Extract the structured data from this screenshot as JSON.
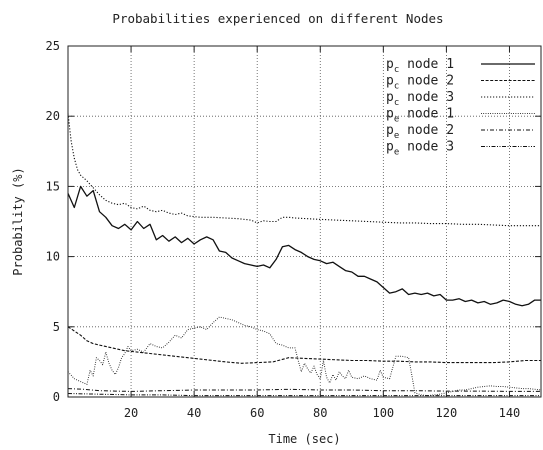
{
  "chart_data": {
    "type": "line",
    "title": "Probabilities experienced on different Nodes",
    "xlabel": "Time (sec)",
    "ylabel": "Probability (%)",
    "xlim": [
      0,
      150
    ],
    "ylim": [
      0,
      25
    ],
    "xticks": [
      20,
      40,
      60,
      80,
      100,
      120,
      140
    ],
    "yticks": [
      0,
      5,
      10,
      15,
      20,
      25
    ],
    "grid": true,
    "legend_position": "top-right",
    "series": [
      {
        "name": "p_c node 1",
        "legend_main": "p",
        "legend_sub": "c",
        "legend_rest": " node 1",
        "dash": "solid",
        "width": 1.3,
        "points": [
          [
            0,
            14.5
          ],
          [
            2,
            13.5
          ],
          [
            4,
            15.0
          ],
          [
            6,
            14.3
          ],
          [
            8,
            14.7
          ],
          [
            10,
            13.2
          ],
          [
            12,
            12.8
          ],
          [
            14,
            12.2
          ],
          [
            16,
            12.0
          ],
          [
            18,
            12.3
          ],
          [
            20,
            11.9
          ],
          [
            22,
            12.5
          ],
          [
            24,
            12.0
          ],
          [
            26,
            12.3
          ],
          [
            28,
            11.2
          ],
          [
            30,
            11.5
          ],
          [
            32,
            11.1
          ],
          [
            34,
            11.4
          ],
          [
            36,
            11.0
          ],
          [
            38,
            11.3
          ],
          [
            40,
            10.9
          ],
          [
            42,
            11.2
          ],
          [
            44,
            11.4
          ],
          [
            46,
            11.2
          ],
          [
            48,
            10.4
          ],
          [
            50,
            10.3
          ],
          [
            52,
            9.9
          ],
          [
            54,
            9.7
          ],
          [
            56,
            9.5
          ],
          [
            58,
            9.4
          ],
          [
            60,
            9.3
          ],
          [
            62,
            9.4
          ],
          [
            64,
            9.2
          ],
          [
            66,
            9.8
          ],
          [
            68,
            10.7
          ],
          [
            70,
            10.8
          ],
          [
            72,
            10.5
          ],
          [
            74,
            10.3
          ],
          [
            76,
            10.0
          ],
          [
            78,
            9.8
          ],
          [
            80,
            9.7
          ],
          [
            82,
            9.5
          ],
          [
            84,
            9.6
          ],
          [
            86,
            9.3
          ],
          [
            88,
            9.0
          ],
          [
            90,
            8.9
          ],
          [
            92,
            8.6
          ],
          [
            94,
            8.6
          ],
          [
            96,
            8.4
          ],
          [
            98,
            8.2
          ],
          [
            100,
            7.8
          ],
          [
            102,
            7.4
          ],
          [
            104,
            7.5
          ],
          [
            106,
            7.7
          ],
          [
            108,
            7.3
          ],
          [
            110,
            7.4
          ],
          [
            112,
            7.3
          ],
          [
            114,
            7.4
          ],
          [
            116,
            7.2
          ],
          [
            118,
            7.3
          ],
          [
            120,
            6.9
          ],
          [
            122,
            6.9
          ],
          [
            124,
            7.0
          ],
          [
            126,
            6.8
          ],
          [
            128,
            6.9
          ],
          [
            130,
            6.7
          ],
          [
            132,
            6.8
          ],
          [
            134,
            6.6
          ],
          [
            136,
            6.7
          ],
          [
            138,
            6.9
          ],
          [
            140,
            6.8
          ],
          [
            142,
            6.6
          ],
          [
            144,
            6.5
          ],
          [
            146,
            6.6
          ],
          [
            148,
            6.9
          ],
          [
            150,
            6.9
          ]
        ]
      },
      {
        "name": "p_c node 2",
        "legend_main": "p",
        "legend_sub": "c",
        "legend_rest": " node 2",
        "dash": "3,1.6",
        "width": 1.1,
        "points": [
          [
            0,
            5.0
          ],
          [
            2,
            4.7
          ],
          [
            4,
            4.4
          ],
          [
            6,
            4.0
          ],
          [
            8,
            3.8
          ],
          [
            10,
            3.7
          ],
          [
            14,
            3.5
          ],
          [
            18,
            3.3
          ],
          [
            22,
            3.2
          ],
          [
            26,
            3.1
          ],
          [
            30,
            3.0
          ],
          [
            34,
            2.9
          ],
          [
            38,
            2.8
          ],
          [
            42,
            2.7
          ],
          [
            46,
            2.6
          ],
          [
            50,
            2.5
          ],
          [
            55,
            2.4
          ],
          [
            60,
            2.45
          ],
          [
            65,
            2.5
          ],
          [
            70,
            2.8
          ],
          [
            75,
            2.75
          ],
          [
            80,
            2.7
          ],
          [
            85,
            2.65
          ],
          [
            90,
            2.6
          ],
          [
            95,
            2.6
          ],
          [
            100,
            2.55
          ],
          [
            105,
            2.55
          ],
          [
            110,
            2.5
          ],
          [
            115,
            2.5
          ],
          [
            120,
            2.45
          ],
          [
            125,
            2.45
          ],
          [
            130,
            2.45
          ],
          [
            135,
            2.45
          ],
          [
            140,
            2.5
          ],
          [
            145,
            2.6
          ],
          [
            150,
            2.6
          ]
        ]
      },
      {
        "name": "p_c node 3",
        "legend_main": "p",
        "legend_sub": "c",
        "legend_rest": " node 3",
        "dash": "1.2,1.8",
        "width": 1.1,
        "points": [
          [
            0,
            20.2
          ],
          [
            1,
            18.2
          ],
          [
            2,
            17.0
          ],
          [
            3,
            16.2
          ],
          [
            4,
            15.8
          ],
          [
            6,
            15.4
          ],
          [
            8,
            14.9
          ],
          [
            10,
            14.4
          ],
          [
            12,
            14.0
          ],
          [
            14,
            13.8
          ],
          [
            16,
            13.7
          ],
          [
            18,
            13.8
          ],
          [
            20,
            13.5
          ],
          [
            22,
            13.4
          ],
          [
            24,
            13.6
          ],
          [
            26,
            13.3
          ],
          [
            28,
            13.2
          ],
          [
            30,
            13.3
          ],
          [
            32,
            13.1
          ],
          [
            34,
            13.0
          ],
          [
            36,
            13.1
          ],
          [
            38,
            12.9
          ],
          [
            40,
            12.85
          ],
          [
            42,
            12.8
          ],
          [
            46,
            12.8
          ],
          [
            50,
            12.75
          ],
          [
            54,
            12.7
          ],
          [
            58,
            12.6
          ],
          [
            60,
            12.4
          ],
          [
            62,
            12.55
          ],
          [
            64,
            12.5
          ],
          [
            66,
            12.5
          ],
          [
            68,
            12.8
          ],
          [
            70,
            12.8
          ],
          [
            72,
            12.75
          ],
          [
            76,
            12.7
          ],
          [
            80,
            12.65
          ],
          [
            85,
            12.6
          ],
          [
            90,
            12.55
          ],
          [
            95,
            12.5
          ],
          [
            100,
            12.45
          ],
          [
            105,
            12.4
          ],
          [
            110,
            12.4
          ],
          [
            115,
            12.35
          ],
          [
            120,
            12.35
          ],
          [
            125,
            12.3
          ],
          [
            130,
            12.3
          ],
          [
            135,
            12.25
          ],
          [
            140,
            12.2
          ],
          [
            145,
            12.2
          ],
          [
            150,
            12.2
          ]
        ]
      },
      {
        "name": "p_e node 1",
        "legend_main": "p",
        "legend_sub": "e",
        "legend_rest": " node 1",
        "dash": "0.8,1.5",
        "width": 1.0,
        "points": [
          [
            0,
            1.8
          ],
          [
            2,
            1.3
          ],
          [
            4,
            1.1
          ],
          [
            6,
            0.9
          ],
          [
            7,
            1.9
          ],
          [
            8,
            1.5
          ],
          [
            9,
            2.8
          ],
          [
            10,
            2.6
          ],
          [
            11,
            2.3
          ],
          [
            12,
            3.2
          ],
          [
            13,
            2.4
          ],
          [
            14,
            1.9
          ],
          [
            15,
            1.6
          ],
          [
            16,
            2.1
          ],
          [
            17,
            2.8
          ],
          [
            18,
            3.1
          ],
          [
            19,
            3.6
          ],
          [
            20,
            3.3
          ],
          [
            22,
            3.4
          ],
          [
            24,
            3.2
          ],
          [
            26,
            3.8
          ],
          [
            28,
            3.6
          ],
          [
            30,
            3.5
          ],
          [
            32,
            3.9
          ],
          [
            34,
            4.4
          ],
          [
            36,
            4.2
          ],
          [
            38,
            4.8
          ],
          [
            40,
            4.9
          ],
          [
            42,
            5.0
          ],
          [
            44,
            4.8
          ],
          [
            46,
            5.3
          ],
          [
            48,
            5.7
          ],
          [
            50,
            5.6
          ],
          [
            52,
            5.5
          ],
          [
            54,
            5.3
          ],
          [
            56,
            5.1
          ],
          [
            58,
            5.0
          ],
          [
            60,
            4.8
          ],
          [
            62,
            4.7
          ],
          [
            64,
            4.5
          ],
          [
            66,
            3.8
          ],
          [
            68,
            3.7
          ],
          [
            70,
            3.5
          ],
          [
            72,
            3.5
          ],
          [
            73,
            2.6
          ],
          [
            74,
            1.8
          ],
          [
            75,
            2.4
          ],
          [
            76,
            2.0
          ],
          [
            77,
            1.7
          ],
          [
            78,
            2.2
          ],
          [
            79,
            1.6
          ],
          [
            80,
            1.3
          ],
          [
            81,
            2.6
          ],
          [
            82,
            1.4
          ],
          [
            83,
            1.0
          ],
          [
            84,
            1.6
          ],
          [
            85,
            1.2
          ],
          [
            86,
            1.8
          ],
          [
            87,
            1.5
          ],
          [
            88,
            1.3
          ],
          [
            89,
            1.9
          ],
          [
            90,
            1.4
          ],
          [
            92,
            1.3
          ],
          [
            94,
            1.5
          ],
          [
            96,
            1.3
          ],
          [
            98,
            1.2
          ],
          [
            99,
            1.9
          ],
          [
            100,
            1.4
          ],
          [
            102,
            1.3
          ],
          [
            104,
            2.9
          ],
          [
            106,
            2.9
          ],
          [
            108,
            2.8
          ],
          [
            109,
            1.6
          ],
          [
            110,
            0.3
          ],
          [
            112,
            0.15
          ],
          [
            114,
            0.1
          ],
          [
            116,
            0.15
          ],
          [
            118,
            0.2
          ],
          [
            120,
            0.3
          ],
          [
            122,
            0.4
          ],
          [
            124,
            0.5
          ],
          [
            126,
            0.5
          ],
          [
            128,
            0.6
          ],
          [
            130,
            0.7
          ],
          [
            132,
            0.75
          ],
          [
            134,
            0.8
          ],
          [
            136,
            0.75
          ],
          [
            138,
            0.75
          ],
          [
            140,
            0.7
          ],
          [
            142,
            0.65
          ],
          [
            144,
            0.6
          ],
          [
            146,
            0.6
          ],
          [
            148,
            0.55
          ],
          [
            150,
            0.5
          ]
        ]
      },
      {
        "name": "p_e node 2",
        "legend_main": "p",
        "legend_sub": "e",
        "legend_rest": " node 2",
        "dash": "4,2,1,2",
        "width": 1.0,
        "points": [
          [
            0,
            0.6
          ],
          [
            5,
            0.55
          ],
          [
            10,
            0.45
          ],
          [
            15,
            0.42
          ],
          [
            20,
            0.4
          ],
          [
            30,
            0.45
          ],
          [
            40,
            0.5
          ],
          [
            50,
            0.5
          ],
          [
            60,
            0.5
          ],
          [
            70,
            0.55
          ],
          [
            80,
            0.5
          ],
          [
            90,
            0.5
          ],
          [
            100,
            0.45
          ],
          [
            110,
            0.45
          ],
          [
            120,
            0.42
          ],
          [
            130,
            0.42
          ],
          [
            140,
            0.4
          ],
          [
            150,
            0.4
          ]
        ]
      },
      {
        "name": "p_e node 3",
        "legend_main": "p",
        "legend_sub": "e",
        "legend_rest": " node 3",
        "dash": "4,1.5,1,1.5,1,1.5",
        "width": 1.0,
        "points": [
          [
            0,
            0.25
          ],
          [
            10,
            0.2
          ],
          [
            20,
            0.15
          ],
          [
            30,
            0.15
          ],
          [
            40,
            0.1
          ],
          [
            50,
            0.1
          ],
          [
            60,
            0.1
          ],
          [
            70,
            0.1
          ],
          [
            80,
            0.1
          ],
          [
            90,
            0.1
          ],
          [
            100,
            0.1
          ],
          [
            110,
            0.1
          ],
          [
            120,
            0.1
          ],
          [
            130,
            0.1
          ],
          [
            140,
            0.1
          ],
          [
            150,
            0.1
          ]
        ]
      }
    ]
  }
}
